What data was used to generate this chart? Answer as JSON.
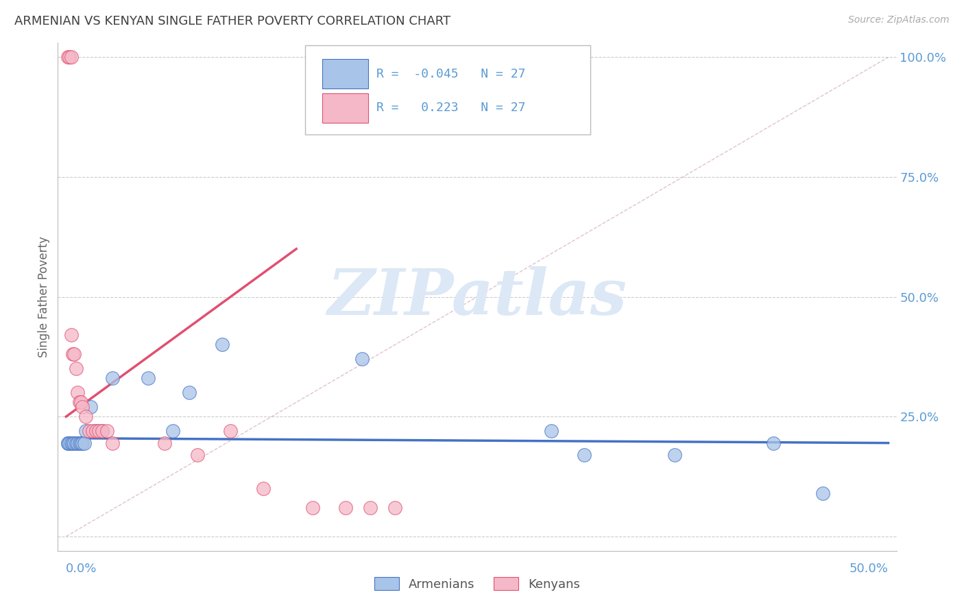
{
  "title": "ARMENIAN VS KENYAN SINGLE FATHER POVERTY CORRELATION CHART",
  "source": "Source: ZipAtlas.com",
  "ylabel": "Single Father Poverty",
  "legend_armenian": "Armenians",
  "legend_kenyan": "Kenyans",
  "R_armenian": -0.045,
  "R_kenyan": 0.223,
  "N_armenian": 27,
  "N_kenyan": 27,
  "armenian_color": "#a8c4e8",
  "kenyan_color": "#f5b8c8",
  "armenian_line_color": "#4472c4",
  "kenyan_line_color": "#e05070",
  "ref_line_color": "#d0aabb",
  "background_color": "#ffffff",
  "grid_color": "#cccccc",
  "watermark_text": "ZIPatlas",
  "watermark_color": "#dce8f5",
  "label_color": "#5b9bd5",
  "text_color": "#404040",
  "armenian_scatter_x": [
    0.001,
    0.001,
    0.002,
    0.003,
    0.004,
    0.005,
    0.006,
    0.007,
    0.008,
    0.009,
    0.01,
    0.011,
    0.012,
    0.015,
    0.018,
    0.022,
    0.028,
    0.05,
    0.065,
    0.075,
    0.095,
    0.18,
    0.295,
    0.315,
    0.37,
    0.43,
    0.46
  ],
  "armenian_scatter_y": [
    0.195,
    0.195,
    0.195,
    0.195,
    0.195,
    0.195,
    0.195,
    0.195,
    0.195,
    0.195,
    0.195,
    0.195,
    0.22,
    0.27,
    0.22,
    0.22,
    0.33,
    0.33,
    0.22,
    0.3,
    0.4,
    0.37,
    0.22,
    0.17,
    0.17,
    0.195,
    0.09
  ],
  "kenyan_scatter_x": [
    0.001,
    0.002,
    0.003,
    0.003,
    0.004,
    0.005,
    0.006,
    0.007,
    0.008,
    0.009,
    0.01,
    0.012,
    0.014,
    0.016,
    0.018,
    0.02,
    0.022,
    0.025,
    0.028,
    0.06,
    0.08,
    0.1,
    0.12,
    0.15,
    0.17,
    0.185,
    0.2
  ],
  "kenyan_scatter_y": [
    1.0,
    1.0,
    1.0,
    0.42,
    0.38,
    0.38,
    0.35,
    0.3,
    0.28,
    0.28,
    0.27,
    0.25,
    0.22,
    0.22,
    0.22,
    0.22,
    0.22,
    0.22,
    0.195,
    0.195,
    0.17,
    0.22,
    0.1,
    0.06,
    0.06,
    0.06,
    0.06
  ],
  "xmin": 0.0,
  "xmax": 0.5,
  "ymin": 0.0,
  "ymax": 1.0,
  "ytick_vals": [
    0.0,
    0.25,
    0.5,
    0.75,
    1.0
  ],
  "ytick_labels": [
    "",
    "25.0%",
    "50.0%",
    "75.0%",
    "100.0%"
  ]
}
